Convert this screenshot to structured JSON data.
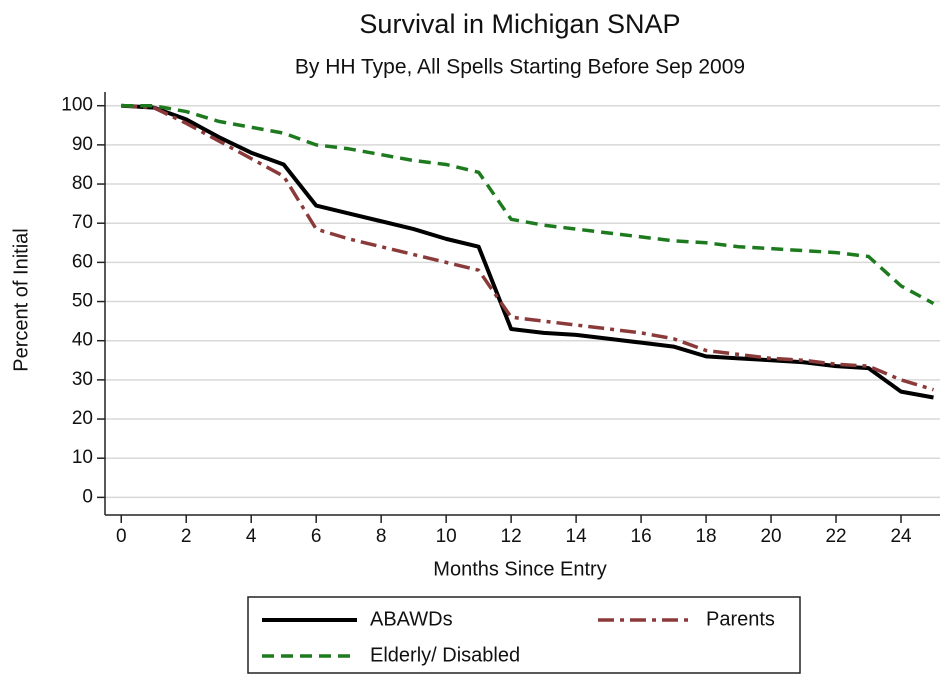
{
  "chart_data": {
    "type": "line",
    "title": "Survival in Michigan SNAP",
    "subtitle": "By HH Type, All Spells Starting Before Sep 2009",
    "x_label": "Months Since Entry",
    "y_label": "Percent of Initial",
    "x": [
      0,
      1,
      2,
      3,
      4,
      5,
      6,
      7,
      8,
      9,
      10,
      11,
      12,
      13,
      14,
      15,
      16,
      17,
      18,
      19,
      20,
      21,
      22,
      23,
      24,
      25
    ],
    "series": [
      {
        "name": "ABAWDs",
        "color": "#000000",
        "style": "solid",
        "values": [
          100,
          99.5,
          96.5,
          92,
          88,
          85,
          74.5,
          72.5,
          70.5,
          68.5,
          66,
          64,
          43,
          42,
          41.5,
          40.5,
          39.5,
          38.5,
          36,
          35.5,
          35,
          34.5,
          33.5,
          33,
          27,
          25.5
        ]
      },
      {
        "name": "Parents",
        "color": "#8b3a3a",
        "style": "dashdot",
        "values": [
          100,
          99.5,
          95.5,
          91,
          86.5,
          82,
          68.5,
          66,
          64,
          62,
          60,
          58,
          46,
          45,
          44,
          43,
          42,
          40.5,
          37.5,
          36.5,
          35.5,
          35,
          34,
          33.5,
          30,
          27.5
        ]
      },
      {
        "name": "Elderly/ Disabled",
        "color": "#1e7a1e",
        "style": "dash",
        "values": [
          100,
          100,
          98.5,
          96,
          94.5,
          93,
          90,
          89,
          87.5,
          86,
          85,
          83,
          71,
          69.5,
          68.5,
          67.5,
          66.5,
          65.5,
          65,
          64,
          63.5,
          63,
          62.5,
          61.5,
          54,
          49.5
        ]
      }
    ],
    "xlim": [
      -0.5,
      25.2
    ],
    "ylim": [
      -4.5,
      103.5
    ],
    "xticks": [
      0,
      2,
      4,
      6,
      8,
      10,
      12,
      14,
      16,
      18,
      20,
      22,
      24
    ],
    "yticks": [
      0,
      10,
      20,
      30,
      40,
      50,
      60,
      70,
      80,
      90,
      100
    ],
    "grid": true,
    "legend": "bottom"
  }
}
